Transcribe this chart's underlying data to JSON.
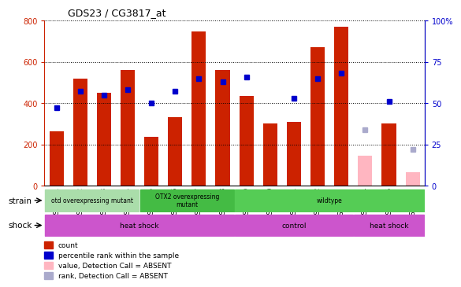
{
  "title": "GDS23 / CG3817_at",
  "samples": [
    "GSM1351",
    "GSM1352",
    "GSM1353",
    "GSM1354",
    "GSM1355",
    "GSM1356",
    "GSM1357",
    "GSM1358",
    "GSM1359",
    "GSM1360",
    "GSM1361",
    "GSM1362",
    "GSM1363",
    "GSM1364",
    "GSM1365",
    "GSM1366"
  ],
  "counts": [
    265,
    520,
    450,
    560,
    235,
    330,
    748,
    560,
    435,
    300,
    310,
    670,
    770,
    null,
    300,
    null
  ],
  "counts_absent": [
    null,
    null,
    null,
    null,
    null,
    null,
    null,
    null,
    null,
    null,
    null,
    null,
    null,
    145,
    null,
    65
  ],
  "percentile": [
    47,
    57,
    55,
    58,
    50,
    57,
    65,
    63,
    66,
    null,
    53,
    65,
    68,
    null,
    51,
    null
  ],
  "percentile_absent": [
    null,
    null,
    null,
    null,
    null,
    null,
    null,
    null,
    null,
    null,
    null,
    null,
    null,
    34,
    null,
    22
  ],
  "ylim_left": [
    0,
    800
  ],
  "ylim_right": [
    0,
    100
  ],
  "yticks_left": [
    0,
    200,
    400,
    600,
    800
  ],
  "yticks_right": [
    0,
    25,
    50,
    75,
    100
  ],
  "bar_color": "#CC2200",
  "bar_absent_color": "#FFB6C1",
  "dot_color": "#0000CC",
  "dot_absent_color": "#AAAACC",
  "strain_group_data": [
    [
      0,
      4,
      "#AADDAA",
      "otd overexpressing mutant"
    ],
    [
      4,
      8,
      "#44BB44",
      "OTX2 overexpressing\nmutant"
    ],
    [
      8,
      16,
      "#55CC55",
      "wildtype"
    ]
  ],
  "shock_group_data": [
    [
      0,
      8,
      "#CC55CC",
      "heat shock"
    ],
    [
      8,
      13,
      "#CC55CC",
      "control"
    ],
    [
      13,
      16,
      "#CC55CC",
      "heat shock"
    ]
  ],
  "strain_label": "strain",
  "shock_label": "shock",
  "legend_items": [
    {
      "label": "count",
      "color": "#CC2200"
    },
    {
      "label": "percentile rank within the sample",
      "color": "#0000CC"
    },
    {
      "label": "value, Detection Call = ABSENT",
      "color": "#FFB6C1"
    },
    {
      "label": "rank, Detection Call = ABSENT",
      "color": "#AAAACC"
    }
  ]
}
